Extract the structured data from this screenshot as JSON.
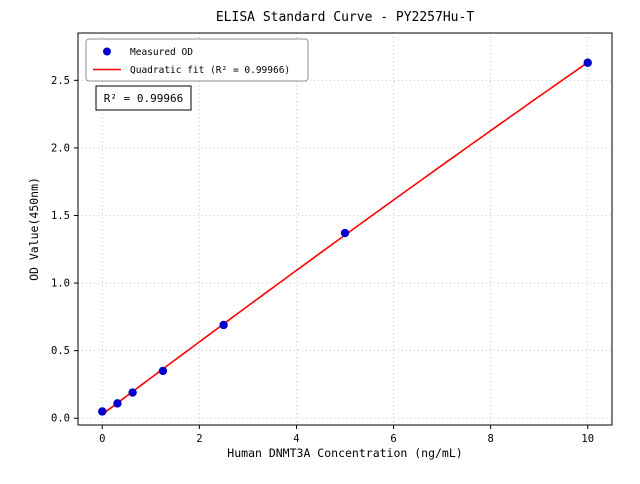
{
  "chart_data": {
    "type": "scatter",
    "title": "ELISA Standard Curve - PY2257Hu-T",
    "xlabel": "Human DNMT3A Concentration (ng/mL)",
    "ylabel": "OD Value(450nm)",
    "xlim": [
      -0.5,
      10.5
    ],
    "ylim": [
      -0.05,
      2.85
    ],
    "xticks": [
      0,
      2,
      4,
      6,
      8,
      10
    ],
    "yticks": [
      0.0,
      0.5,
      1.0,
      1.5,
      2.0,
      2.5
    ],
    "grid": true,
    "grid_style": "dotted",
    "legend_position": "upper-left",
    "series": [
      {
        "name": "Measured OD",
        "kind": "scatter",
        "color": "#0000cd",
        "x": [
          0,
          0.3125,
          0.625,
          1.25,
          2.5,
          5,
          10
        ],
        "y": [
          0.05,
          0.11,
          0.19,
          0.35,
          0.69,
          1.37,
          2.63
        ]
      },
      {
        "name": "Quadratic fit (R² = 0.99966)",
        "kind": "line",
        "color": "#ff0000",
        "fit_coefficients": {
          "intercept": 0.0286,
          "linear": 0.2702,
          "quadratic": -0.00098
        },
        "x_start": 0,
        "x_end": 10
      }
    ],
    "annotation": {
      "text": "R² = 0.99966"
    },
    "r_squared": 0.99966
  },
  "colors": {
    "background": "#ffffff",
    "grid": "#b3b3b3",
    "axis": "#000000",
    "legend_border": "#8f8f8f",
    "marker": "#0000cd",
    "fit_line": "#ff0000"
  }
}
